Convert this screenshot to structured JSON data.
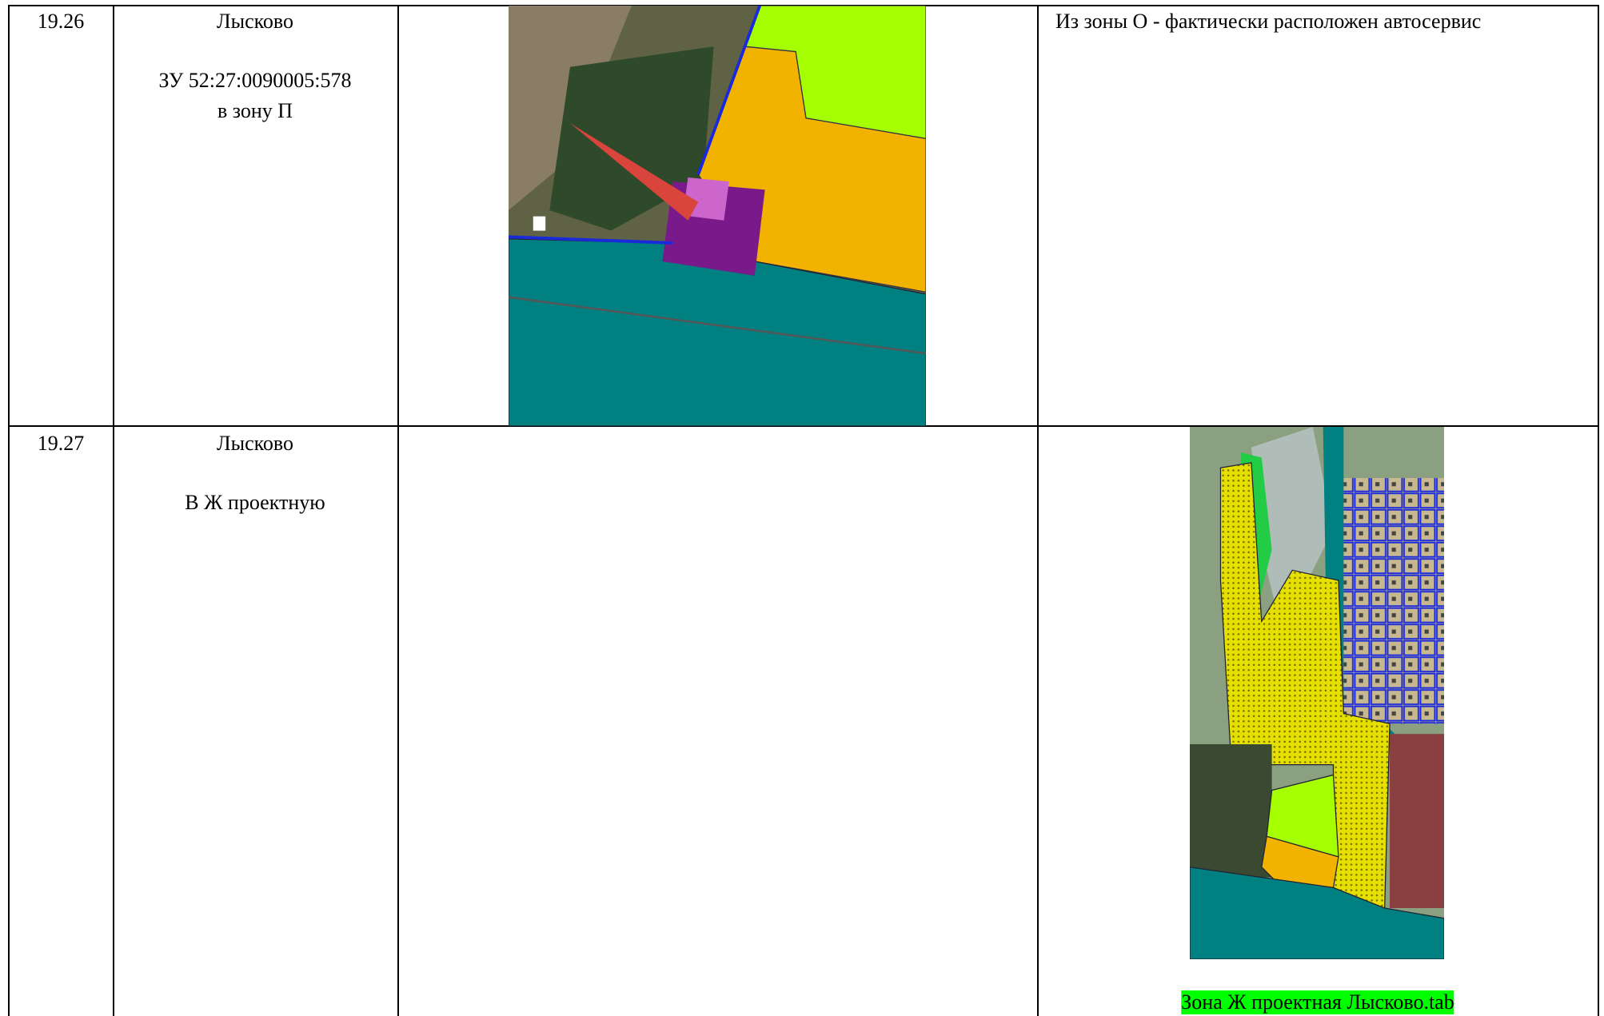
{
  "table": {
    "rows": [
      {
        "number": "19.26",
        "place": "Лысково",
        "subject": [
          "ЗУ 52:27:0090005:578",
          "в зону П"
        ],
        "comment": "Из зоны О - фактически расположен автосервис"
      },
      {
        "number": "19.27",
        "place": "Лысково",
        "subject": [
          "В Ж проектную"
        ],
        "caption": "Зона Ж проектная Лысково.tab"
      }
    ]
  }
}
